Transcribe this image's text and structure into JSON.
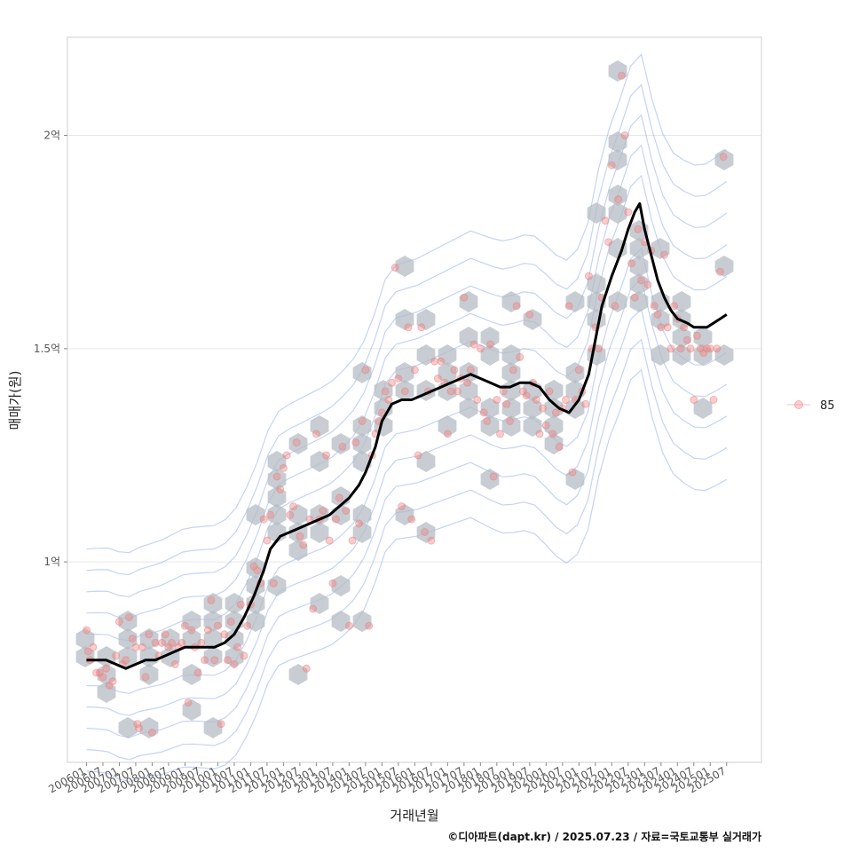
{
  "chart_data": {
    "type": "scatter",
    "xlabel": "거래년월",
    "ylabel": "매매가(원)",
    "caption": "©디아파트(dapt.kr) / 2025.07.23 / 자료=국토교통부 실거래가",
    "x_tick_labels": [
      "200601",
      "200607",
      "200701",
      "200707",
      "200801",
      "200807",
      "200901",
      "200907",
      "201001",
      "201007",
      "201101",
      "201107",
      "201201",
      "201207",
      "201301",
      "201307",
      "201401",
      "201407",
      "201501",
      "201507",
      "201601",
      "201607",
      "201701",
      "201707",
      "201801",
      "201807",
      "201901",
      "201907",
      "202001",
      "202007",
      "202101",
      "202107",
      "202201",
      "202207",
      "202301",
      "202307",
      "202401",
      "202407",
      "202501",
      "202507"
    ],
    "y_ticks": [
      {
        "value": 1.0,
        "label": "1억"
      },
      {
        "value": 1.5,
        "label": "1.5억"
      },
      {
        "value": 2.0,
        "label": "2억"
      }
    ],
    "ylim": [
      0.53,
      2.23
    ],
    "xlim": [
      2005.42,
      2026.56
    ],
    "grid": true,
    "legend": {
      "position": "right",
      "entries": [
        {
          "name": "85",
          "color": "#f08080"
        }
      ]
    },
    "colors": {
      "points": "#f08080",
      "hex": "#b4bcc4",
      "trend": "#000000",
      "contour": "#7f9ee8"
    },
    "series": [
      {
        "name": "85",
        "kind": "points",
        "points": [
          [
            2006.0,
            0.84
          ],
          [
            2006.05,
            0.79
          ],
          [
            2006.1,
            0.77
          ],
          [
            2006.2,
            0.8
          ],
          [
            2006.3,
            0.74
          ],
          [
            2006.4,
            0.74
          ],
          [
            2006.5,
            0.73
          ],
          [
            2006.6,
            0.75
          ],
          [
            2006.7,
            0.71
          ],
          [
            2006.8,
            0.72
          ],
          [
            2006.9,
            0.78
          ],
          [
            2007.0,
            0.86
          ],
          [
            2007.1,
            0.76
          ],
          [
            2007.2,
            0.77
          ],
          [
            2007.3,
            0.87
          ],
          [
            2007.4,
            0.82
          ],
          [
            2007.5,
            0.8
          ],
          [
            2007.55,
            0.62
          ],
          [
            2007.6,
            0.61
          ],
          [
            2007.7,
            0.8
          ],
          [
            2007.8,
            0.73
          ],
          [
            2007.9,
            0.83
          ],
          [
            2008.0,
            0.6
          ],
          [
            2008.1,
            0.81
          ],
          [
            2008.2,
            0.78
          ],
          [
            2008.3,
            0.81
          ],
          [
            2008.4,
            0.83
          ],
          [
            2008.5,
            0.8
          ],
          [
            2008.6,
            0.81
          ],
          [
            2008.7,
            0.76
          ],
          [
            2008.8,
            0.8
          ],
          [
            2008.9,
            0.81
          ],
          [
            2009.0,
            0.85
          ],
          [
            2009.1,
            0.67
          ],
          [
            2009.2,
            0.84
          ],
          [
            2009.3,
            0.8
          ],
          [
            2009.4,
            0.74
          ],
          [
            2009.5,
            0.81
          ],
          [
            2009.6,
            0.77
          ],
          [
            2009.7,
            0.84
          ],
          [
            2009.8,
            0.91
          ],
          [
            2009.9,
            0.77
          ],
          [
            2010.0,
            0.85
          ],
          [
            2010.1,
            0.62
          ],
          [
            2010.2,
            0.83
          ],
          [
            2010.3,
            0.77
          ],
          [
            2010.4,
            0.86
          ],
          [
            2010.5,
            0.76
          ],
          [
            2010.6,
            0.8
          ],
          [
            2010.7,
            0.9
          ],
          [
            2010.8,
            0.78
          ],
          [
            2010.9,
            0.85
          ],
          [
            2011.0,
            0.9
          ],
          [
            2011.1,
            0.99
          ],
          [
            2011.2,
            0.98
          ],
          [
            2011.3,
            0.95
          ],
          [
            2011.4,
            1.1
          ],
          [
            2011.5,
            1.05
          ],
          [
            2011.6,
            1.11
          ],
          [
            2011.7,
            0.95
          ],
          [
            2011.8,
            1.2
          ],
          [
            2011.9,
            1.17
          ],
          [
            2012.0,
            1.22
          ],
          [
            2012.1,
            1.25
          ],
          [
            2012.2,
            1.11
          ],
          [
            2012.3,
            1.13
          ],
          [
            2012.4,
            1.28
          ],
          [
            2012.5,
            1.06
          ],
          [
            2012.6,
            1.04
          ],
          [
            2012.7,
            0.75
          ],
          [
            2012.8,
            1.1
          ],
          [
            2012.9,
            0.89
          ],
          [
            2013.0,
            1.3
          ],
          [
            2013.1,
            1.1
          ],
          [
            2013.2,
            1.12
          ],
          [
            2013.3,
            1.25
          ],
          [
            2013.4,
            1.05
          ],
          [
            2013.5,
            0.95
          ],
          [
            2013.6,
            1.1
          ],
          [
            2013.7,
            1.15
          ],
          [
            2013.8,
            1.27
          ],
          [
            2013.9,
            1.12
          ],
          [
            2014.0,
            0.85
          ],
          [
            2014.1,
            1.05
          ],
          [
            2014.2,
            1.28
          ],
          [
            2014.3,
            1.09
          ],
          [
            2014.4,
            1.33
          ],
          [
            2014.5,
            1.45
          ],
          [
            2014.6,
            0.85
          ],
          [
            2014.7,
            1.25
          ],
          [
            2014.8,
            1.3
          ],
          [
            2014.9,
            1.33
          ],
          [
            2015.0,
            1.35
          ],
          [
            2015.1,
            1.4
          ],
          [
            2015.2,
            1.38
          ],
          [
            2015.3,
            1.42
          ],
          [
            2015.4,
            1.69
          ],
          [
            2015.5,
            1.43
          ],
          [
            2015.6,
            1.13
          ],
          [
            2015.7,
            1.4
          ],
          [
            2015.8,
            1.55
          ],
          [
            2015.9,
            1.1
          ],
          [
            2016.0,
            1.45
          ],
          [
            2016.1,
            1.25
          ],
          [
            2016.2,
            1.55
          ],
          [
            2016.3,
            1.07
          ],
          [
            2016.4,
            1.4
          ],
          [
            2016.5,
            1.05
          ],
          [
            2016.6,
            1.47
          ],
          [
            2016.7,
            1.43
          ],
          [
            2016.8,
            1.47
          ],
          [
            2016.9,
            1.42
          ],
          [
            2017.0,
            1.3
          ],
          [
            2017.1,
            1.4
          ],
          [
            2017.2,
            1.45
          ],
          [
            2017.3,
            1.4
          ],
          [
            2017.4,
            1.43
          ],
          [
            2017.5,
            1.62
          ],
          [
            2017.6,
            1.42
          ],
          [
            2017.7,
            1.45
          ],
          [
            2017.8,
            1.51
          ],
          [
            2017.9,
            1.38
          ],
          [
            2018.0,
            1.5
          ],
          [
            2018.1,
            1.35
          ],
          [
            2018.2,
            1.33
          ],
          [
            2018.3,
            1.51
          ],
          [
            2018.4,
            1.2
          ],
          [
            2018.5,
            1.38
          ],
          [
            2018.6,
            1.3
          ],
          [
            2018.7,
            1.4
          ],
          [
            2018.8,
            1.37
          ],
          [
            2018.9,
            1.33
          ],
          [
            2019.0,
            1.45
          ],
          [
            2019.1,
            1.6
          ],
          [
            2019.2,
            1.48
          ],
          [
            2019.3,
            1.4
          ],
          [
            2019.4,
            1.39
          ],
          [
            2019.5,
            1.58
          ],
          [
            2019.6,
            1.42
          ],
          [
            2019.7,
            1.38
          ],
          [
            2019.8,
            1.3
          ],
          [
            2019.9,
            1.36
          ],
          [
            2020.0,
            1.32
          ],
          [
            2020.1,
            1.4
          ],
          [
            2020.2,
            1.3
          ],
          [
            2020.3,
            1.35
          ],
          [
            2020.4,
            1.27
          ],
          [
            2020.5,
            1.36
          ],
          [
            2020.6,
            1.38
          ],
          [
            2020.7,
            1.6
          ],
          [
            2020.8,
            1.21
          ],
          [
            2020.9,
            1.38
          ],
          [
            2021.0,
            1.45
          ],
          [
            2021.1,
            1.4
          ],
          [
            2021.2,
            1.37
          ],
          [
            2021.3,
            1.67
          ],
          [
            2021.4,
            1.5
          ],
          [
            2021.5,
            1.55
          ],
          [
            2021.6,
            1.5
          ],
          [
            2021.7,
            1.62
          ],
          [
            2021.8,
            1.8
          ],
          [
            2021.9,
            1.75
          ],
          [
            2022.0,
            1.93
          ],
          [
            2022.1,
            1.6
          ],
          [
            2022.2,
            1.85
          ],
          [
            2022.3,
            2.14
          ],
          [
            2022.4,
            2.0
          ],
          [
            2022.5,
            1.82
          ],
          [
            2022.6,
            1.7
          ],
          [
            2022.7,
            1.62
          ],
          [
            2022.8,
            1.78
          ],
          [
            2022.9,
            1.66
          ],
          [
            2023.0,
            1.75
          ],
          [
            2023.1,
            1.65
          ],
          [
            2023.2,
            1.73
          ],
          [
            2023.3,
            1.6
          ],
          [
            2023.4,
            1.58
          ],
          [
            2023.5,
            1.55
          ],
          [
            2023.6,
            1.72
          ],
          [
            2023.7,
            1.55
          ],
          [
            2023.8,
            1.5
          ],
          [
            2023.9,
            1.6
          ],
          [
            2024.0,
            1.57
          ],
          [
            2024.1,
            1.5
          ],
          [
            2024.2,
            1.55
          ],
          [
            2024.3,
            1.52
          ],
          [
            2024.4,
            1.5
          ],
          [
            2024.5,
            1.38
          ],
          [
            2024.6,
            1.53
          ],
          [
            2024.7,
            1.5
          ],
          [
            2024.8,
            1.49
          ],
          [
            2024.9,
            1.5
          ],
          [
            2025.0,
            1.5
          ],
          [
            2025.1,
            1.38
          ],
          [
            2025.2,
            1.5
          ],
          [
            2025.3,
            1.68
          ],
          [
            2025.4,
            1.95
          ]
        ]
      },
      {
        "name": "moving-average",
        "kind": "line",
        "points": [
          [
            2006.0,
            0.77
          ],
          [
            2006.3,
            0.77
          ],
          [
            2006.6,
            0.77
          ],
          [
            2006.9,
            0.76
          ],
          [
            2007.2,
            0.75
          ],
          [
            2007.5,
            0.76
          ],
          [
            2007.8,
            0.77
          ],
          [
            2008.1,
            0.77
          ],
          [
            2008.4,
            0.78
          ],
          [
            2008.7,
            0.79
          ],
          [
            2009.0,
            0.8
          ],
          [
            2009.3,
            0.8
          ],
          [
            2009.6,
            0.8
          ],
          [
            2009.9,
            0.8
          ],
          [
            2010.2,
            0.81
          ],
          [
            2010.5,
            0.83
          ],
          [
            2010.8,
            0.87
          ],
          [
            2011.1,
            0.92
          ],
          [
            2011.4,
            0.98
          ],
          [
            2011.6,
            1.03
          ],
          [
            2011.9,
            1.06
          ],
          [
            2012.2,
            1.07
          ],
          [
            2012.5,
            1.08
          ],
          [
            2012.8,
            1.09
          ],
          [
            2013.1,
            1.1
          ],
          [
            2013.4,
            1.11
          ],
          [
            2013.7,
            1.13
          ],
          [
            2014.0,
            1.15
          ],
          [
            2014.3,
            1.18
          ],
          [
            2014.5,
            1.21
          ],
          [
            2014.8,
            1.27
          ],
          [
            2015.0,
            1.33
          ],
          [
            2015.3,
            1.37
          ],
          [
            2015.6,
            1.38
          ],
          [
            2015.9,
            1.38
          ],
          [
            2016.2,
            1.39
          ],
          [
            2016.5,
            1.4
          ],
          [
            2016.8,
            1.41
          ],
          [
            2017.1,
            1.42
          ],
          [
            2017.4,
            1.43
          ],
          [
            2017.7,
            1.44
          ],
          [
            2018.0,
            1.43
          ],
          [
            2018.3,
            1.42
          ],
          [
            2018.6,
            1.41
          ],
          [
            2018.9,
            1.41
          ],
          [
            2019.2,
            1.42
          ],
          [
            2019.5,
            1.42
          ],
          [
            2019.8,
            1.41
          ],
          [
            2020.1,
            1.38
          ],
          [
            2020.4,
            1.36
          ],
          [
            2020.7,
            1.35
          ],
          [
            2021.0,
            1.38
          ],
          [
            2021.3,
            1.44
          ],
          [
            2021.5,
            1.52
          ],
          [
            2021.7,
            1.6
          ],
          [
            2022.0,
            1.67
          ],
          [
            2022.3,
            1.73
          ],
          [
            2022.5,
            1.78
          ],
          [
            2022.7,
            1.82
          ],
          [
            2022.85,
            1.84
          ],
          [
            2023.0,
            1.78
          ],
          [
            2023.2,
            1.72
          ],
          [
            2023.4,
            1.66
          ],
          [
            2023.6,
            1.62
          ],
          [
            2023.8,
            1.59
          ],
          [
            2024.0,
            1.57
          ],
          [
            2024.3,
            1.56
          ],
          [
            2024.5,
            1.55
          ],
          [
            2024.7,
            1.55
          ],
          [
            2024.9,
            1.55
          ],
          [
            2025.1,
            1.56
          ],
          [
            2025.3,
            1.57
          ],
          [
            2025.5,
            1.58
          ]
        ]
      }
    ]
  }
}
